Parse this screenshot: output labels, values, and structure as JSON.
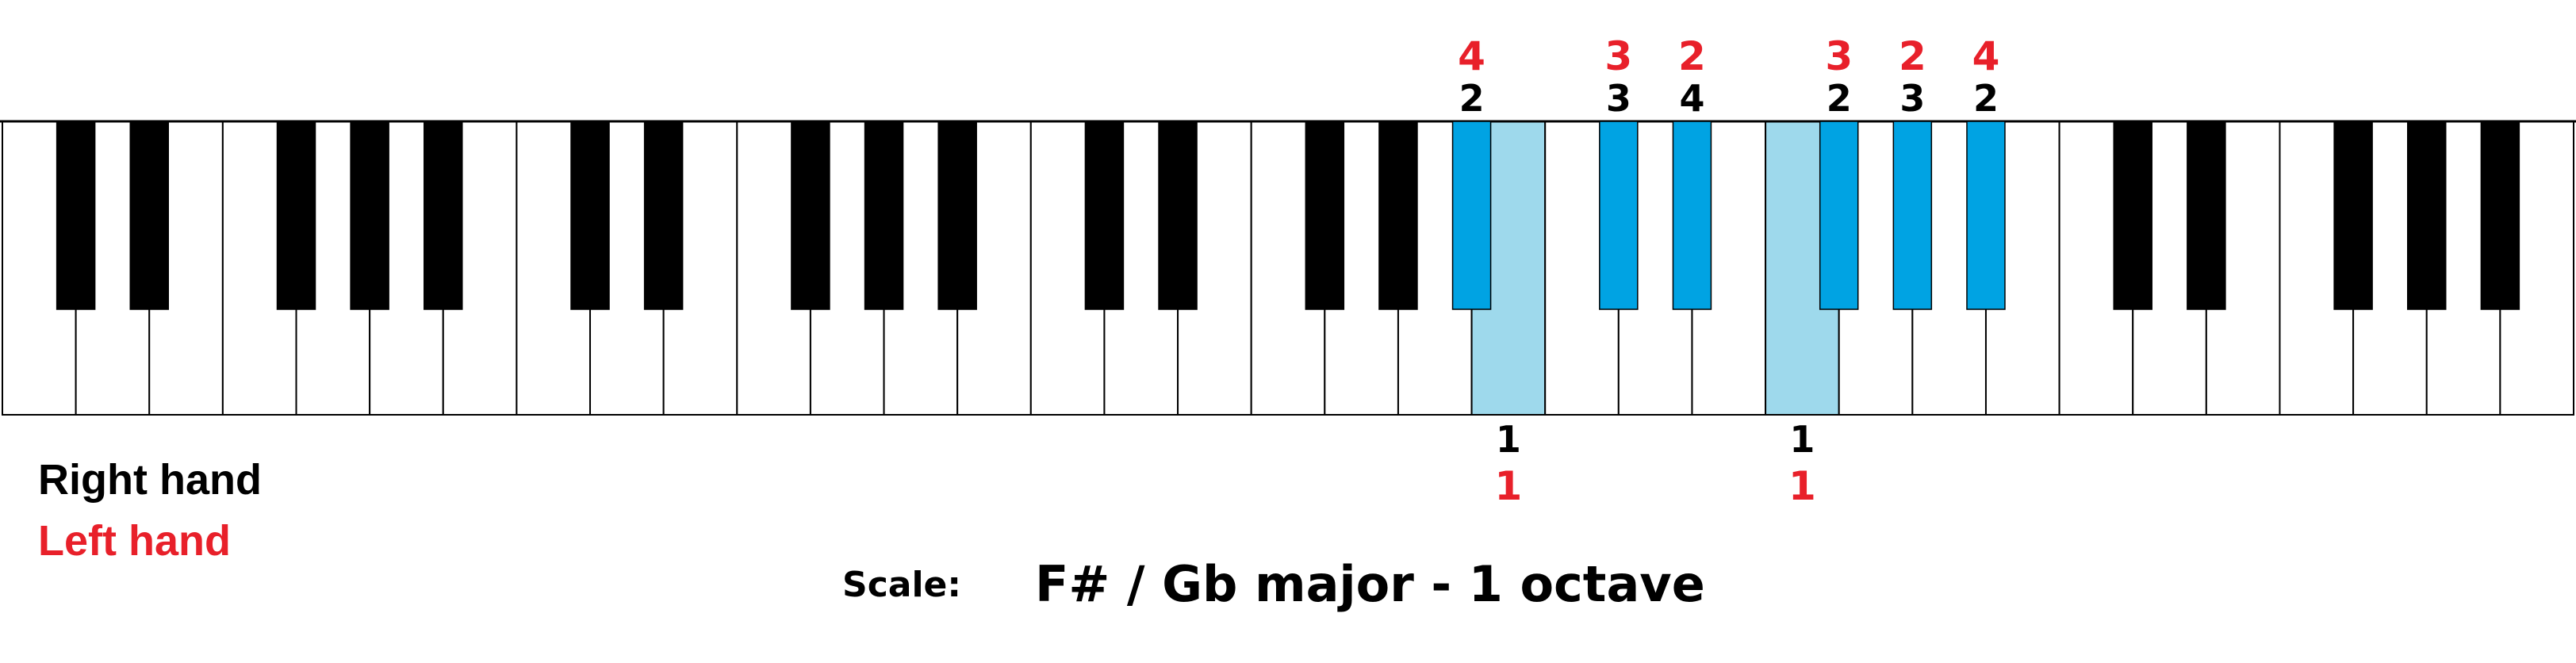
{
  "colors": {
    "right_hand": "#000000",
    "left_hand": "#e8202a",
    "black_key_highlight": "#00a3e3",
    "white_key_highlight": "#9ed9ec"
  },
  "keyboard": {
    "white_key_count": 35,
    "highlighted_white_keys": [
      20,
      24
    ],
    "highlighted_black_keys": [
      14,
      15,
      16,
      17,
      18,
      19
    ]
  },
  "fingering": {
    "black_keys": [
      {
        "key": 14,
        "right": "2",
        "left": "4"
      },
      {
        "key": 15,
        "right": "3",
        "left": "3"
      },
      {
        "key": 16,
        "right": "4",
        "left": "2"
      },
      {
        "key": 17,
        "right": "2",
        "left": "3"
      },
      {
        "key": 18,
        "right": "3",
        "left": "2"
      },
      {
        "key": 19,
        "right": "2",
        "left": "4"
      }
    ],
    "white_keys": [
      {
        "key": 20,
        "right": "1",
        "left": "1"
      },
      {
        "key": 24,
        "right": "1",
        "left": "1"
      }
    ]
  },
  "legend": {
    "right_hand": "Right hand",
    "left_hand": "Left hand"
  },
  "scale": {
    "label": "Scale:",
    "title": "F# / Gb major - 1 octave"
  }
}
